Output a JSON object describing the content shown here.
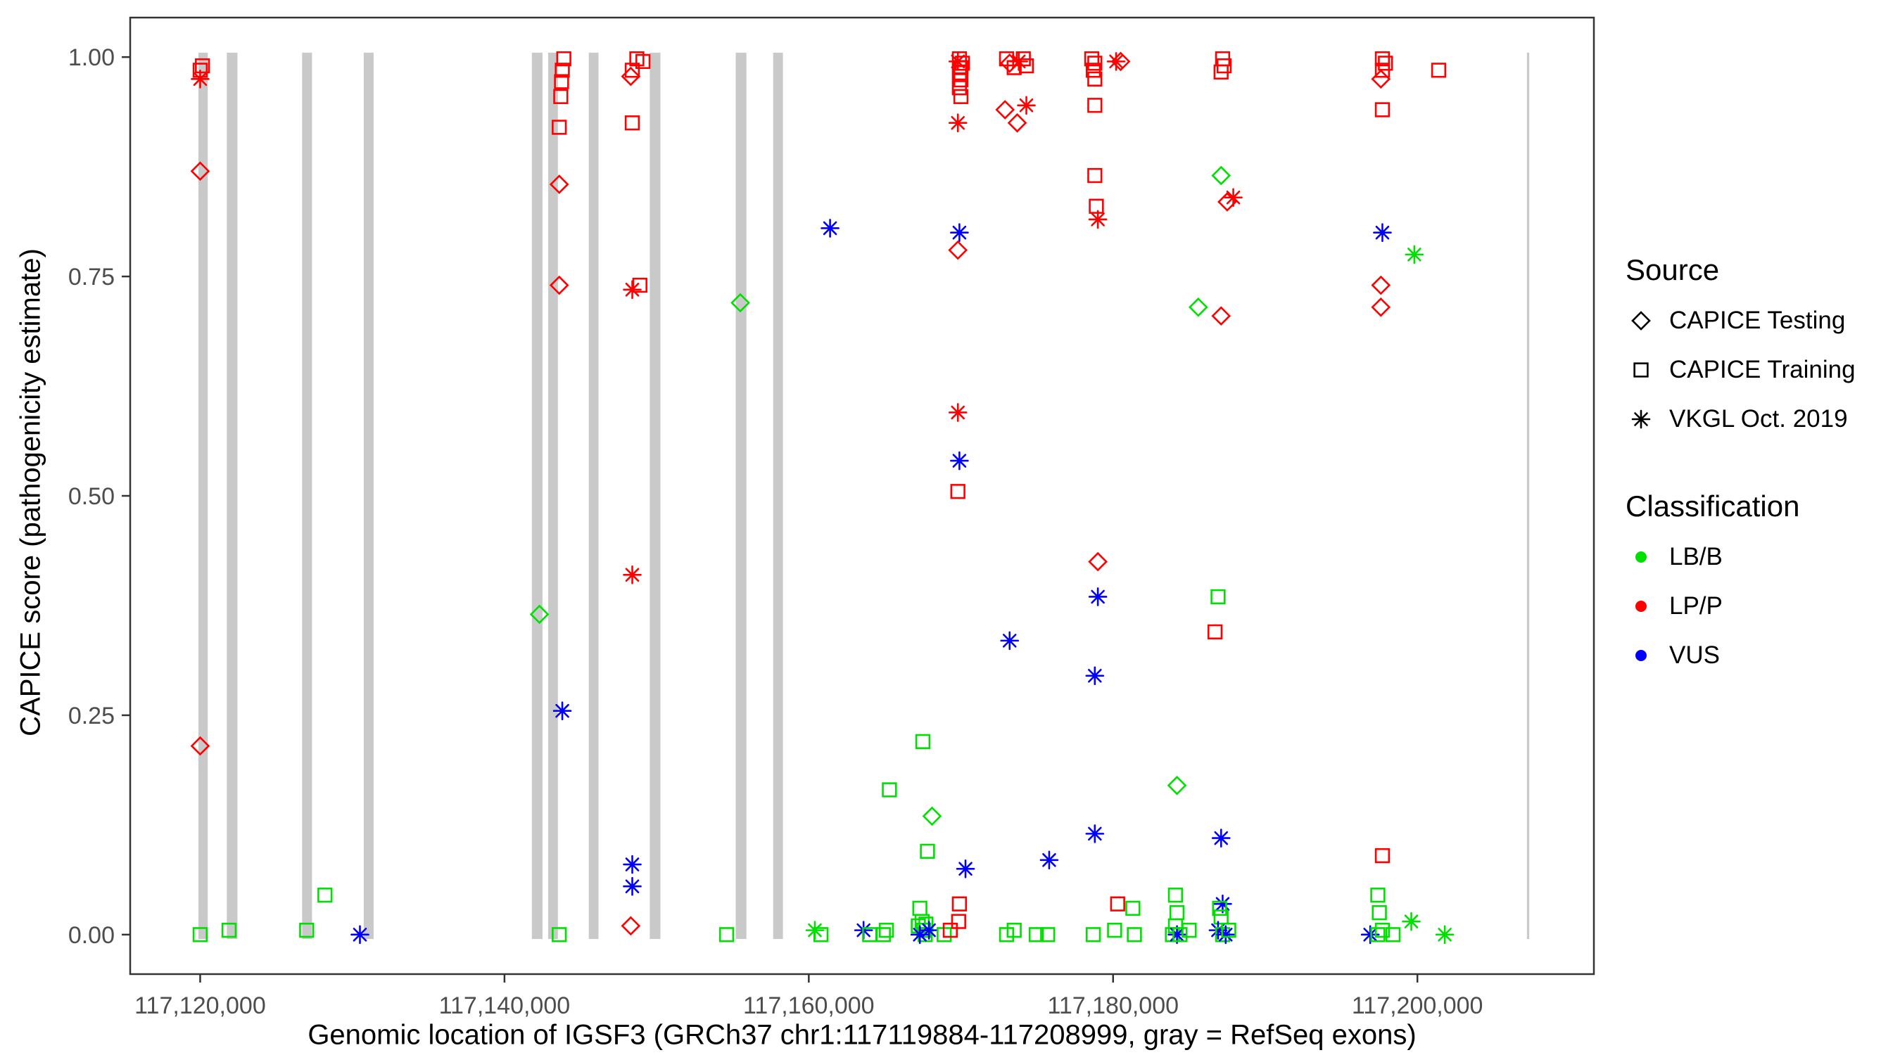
{
  "chart_data": {
    "type": "scatter",
    "title": "",
    "xlabel": "Genomic location of IGSF3 (GRCh37 chr1:117119884-117208999, gray = RefSeq exons)",
    "ylabel": "CAPICE score (pathogenicity estimate)",
    "xlim": [
      117115400,
      117211600
    ],
    "ylim": [
      -0.045,
      1.045
    ],
    "grid": false,
    "panel": {
      "background": "#ffffff",
      "border_color": "#333333"
    },
    "tick_label_color": "#4d4d4d",
    "x_ticks": [
      {
        "value": 117120000,
        "label": "117,120,000"
      },
      {
        "value": 117140000,
        "label": "117,140,000"
      },
      {
        "value": 117160000,
        "label": "117,160,000"
      },
      {
        "value": 117180000,
        "label": "117,180,000"
      },
      {
        "value": 117200000,
        "label": "117,200,000"
      }
    ],
    "y_ticks": [
      {
        "value": 0.0,
        "label": "0.00"
      },
      {
        "value": 0.25,
        "label": "0.25"
      },
      {
        "value": 0.5,
        "label": "0.50"
      },
      {
        "value": 0.75,
        "label": "0.75"
      },
      {
        "value": 1.0,
        "label": "1.00"
      }
    ],
    "exon_color": "#c9c9c9",
    "exons": [
      [
        117119884,
        117120500
      ],
      [
        117121750,
        117122450
      ],
      [
        117126700,
        117127350
      ],
      [
        117130750,
        117131400
      ],
      [
        117141800,
        117142500
      ],
      [
        117142870,
        117143510
      ],
      [
        117145540,
        117146180
      ],
      [
        117149550,
        117150250
      ],
      [
        117155200,
        117155900
      ],
      [
        117157660,
        117158300
      ],
      [
        117207200,
        117207350
      ]
    ],
    "legend": {
      "source": {
        "title": "Source",
        "items": [
          {
            "label": "CAPICE Testing",
            "shape": "diamond"
          },
          {
            "label": "CAPICE Training",
            "shape": "square"
          },
          {
            "label": "VKGL Oct. 2019",
            "shape": "asterisk"
          }
        ]
      },
      "classification": {
        "title": "Classification",
        "items": [
          {
            "label": "LB/B",
            "color": "#00e000"
          },
          {
            "label": "LP/P",
            "color": "#ff0000"
          },
          {
            "label": "VUS",
            "color": "#0000ff"
          }
        ]
      }
    },
    "shape_by_source": {
      "Testing": "diamond",
      "Training": "square",
      "VKGL": "asterisk"
    },
    "color_by_class": {
      "LB/B": "#00e000",
      "LP/P": "#ff0000",
      "VUS": "#0000ff"
    },
    "points_format": [
      "genomic_position",
      "capice_score",
      "source",
      "classification"
    ],
    "points": [
      [
        117120000,
        0.985,
        "Training",
        "LP/P"
      ],
      [
        117120150,
        0.99,
        "Training",
        "LP/P"
      ],
      [
        117120000,
        0.975,
        "VKGL",
        "LP/P"
      ],
      [
        117120000,
        0.87,
        "Testing",
        "LP/P"
      ],
      [
        117120000,
        0.215,
        "Testing",
        "LP/P"
      ],
      [
        117120000,
        0.0,
        "Training",
        "LB/B"
      ],
      [
        117121900,
        0.005,
        "Training",
        "LB/B"
      ],
      [
        117127000,
        0.005,
        "Training",
        "LB/B"
      ],
      [
        117128200,
        0.045,
        "Training",
        "LB/B"
      ],
      [
        117130500,
        0.0,
        "VKGL",
        "VUS"
      ],
      [
        117143900,
        0.998,
        "Training",
        "LP/P"
      ],
      [
        117143800,
        0.985,
        "Training",
        "LP/P"
      ],
      [
        117143750,
        0.972,
        "Training",
        "LP/P"
      ],
      [
        117143700,
        0.955,
        "Training",
        "LP/P"
      ],
      [
        117143600,
        0.92,
        "Training",
        "LP/P"
      ],
      [
        117143600,
        0.855,
        "Testing",
        "LP/P"
      ],
      [
        117143600,
        0.74,
        "Testing",
        "LP/P"
      ],
      [
        117142300,
        0.365,
        "Testing",
        "LB/B"
      ],
      [
        117143800,
        0.255,
        "VKGL",
        "VUS"
      ],
      [
        117143600,
        0.0,
        "Training",
        "LB/B"
      ],
      [
        117148700,
        0.998,
        "Training",
        "LP/P"
      ],
      [
        117149100,
        0.995,
        "Training",
        "LP/P"
      ],
      [
        117148400,
        0.985,
        "Training",
        "LP/P"
      ],
      [
        117148300,
        0.978,
        "Testing",
        "LP/P"
      ],
      [
        117148400,
        0.925,
        "Training",
        "LP/P"
      ],
      [
        117148900,
        0.74,
        "Training",
        "LP/P"
      ],
      [
        117148400,
        0.735,
        "VKGL",
        "LP/P"
      ],
      [
        117148400,
        0.41,
        "VKGL",
        "LP/P"
      ],
      [
        117148400,
        0.08,
        "VKGL",
        "VUS"
      ],
      [
        117148400,
        0.055,
        "VKGL",
        "VUS"
      ],
      [
        117148300,
        0.01,
        "Testing",
        "LP/P"
      ],
      [
        117155500,
        0.72,
        "Testing",
        "LB/B"
      ],
      [
        117154600,
        0.0,
        "Training",
        "LB/B"
      ],
      [
        117161400,
        0.805,
        "VKGL",
        "VUS"
      ],
      [
        117160400,
        0.005,
        "VKGL",
        "LB/B"
      ],
      [
        117160800,
        0.0,
        "Training",
        "LB/B"
      ],
      [
        117163600,
        0.005,
        "VKGL",
        "VUS"
      ],
      [
        117164000,
        0.0,
        "Training",
        "LB/B"
      ],
      [
        117164900,
        0.0,
        "Training",
        "LB/B"
      ],
      [
        117165100,
        0.005,
        "Training",
        "LB/B"
      ],
      [
        117165300,
        0.165,
        "Training",
        "LB/B"
      ],
      [
        117167500,
        0.22,
        "Training",
        "LB/B"
      ],
      [
        117168100,
        0.135,
        "Testing",
        "LB/B"
      ],
      [
        117167800,
        0.095,
        "Training",
        "LB/B"
      ],
      [
        117167300,
        0.03,
        "Training",
        "LB/B"
      ],
      [
        117167450,
        0.015,
        "Training",
        "LB/B"
      ],
      [
        117167200,
        0.01,
        "Training",
        "LB/B"
      ],
      [
        117167550,
        0.005,
        "Training",
        "LB/B"
      ],
      [
        117167650,
        0.0,
        "Training",
        "LB/B"
      ],
      [
        117167700,
        0.012,
        "Training",
        "LB/B"
      ],
      [
        117167300,
        0.0,
        "VKGL",
        "VUS"
      ],
      [
        117167900,
        0.005,
        "VKGL",
        "VUS"
      ],
      [
        117168900,
        0.0,
        "Training",
        "LB/B"
      ],
      [
        117169300,
        0.005,
        "Training",
        "LP/P"
      ],
      [
        117169900,
        0.998,
        "Training",
        "LP/P"
      ],
      [
        117170100,
        0.993,
        "Training",
        "LP/P"
      ],
      [
        117169800,
        0.995,
        "VKGL",
        "LP/P"
      ],
      [
        117170000,
        0.988,
        "Training",
        "LP/P"
      ],
      [
        117169900,
        0.982,
        "Training",
        "LP/P"
      ],
      [
        117170000,
        0.974,
        "Training",
        "LP/P"
      ],
      [
        117169900,
        0.965,
        "Training",
        "LP/P"
      ],
      [
        117170000,
        0.955,
        "Training",
        "LP/P"
      ],
      [
        117169800,
        0.925,
        "VKGL",
        "LP/P"
      ],
      [
        117169900,
        0.8,
        "VKGL",
        "VUS"
      ],
      [
        117169800,
        0.78,
        "Testing",
        "LP/P"
      ],
      [
        117169800,
        0.595,
        "VKGL",
        "LP/P"
      ],
      [
        117169900,
        0.54,
        "VKGL",
        "VUS"
      ],
      [
        117169800,
        0.505,
        "Training",
        "LP/P"
      ],
      [
        117170300,
        0.075,
        "VKGL",
        "VUS"
      ],
      [
        117169900,
        0.035,
        "Training",
        "LP/P"
      ],
      [
        117169850,
        0.015,
        "Training",
        "LP/P"
      ],
      [
        117173000,
        0.998,
        "Training",
        "LP/P"
      ],
      [
        117173200,
        0.993,
        "Testing",
        "LP/P"
      ],
      [
        117173500,
        0.988,
        "Training",
        "LP/P"
      ],
      [
        117173800,
        0.995,
        "VKGL",
        "LP/P"
      ],
      [
        117174100,
        0.998,
        "Training",
        "LP/P"
      ],
      [
        117174300,
        0.99,
        "Training",
        "LP/P"
      ],
      [
        117172900,
        0.94,
        "Testing",
        "LP/P"
      ],
      [
        117173700,
        0.925,
        "Testing",
        "LP/P"
      ],
      [
        117174300,
        0.945,
        "VKGL",
        "LP/P"
      ],
      [
        117173200,
        0.335,
        "VKGL",
        "VUS"
      ],
      [
        117173000,
        0.0,
        "Training",
        "LB/B"
      ],
      [
        117173500,
        0.005,
        "Training",
        "LB/B"
      ],
      [
        117174950,
        0.0,
        "Training",
        "LB/B"
      ],
      [
        117175800,
        0.085,
        "VKGL",
        "VUS"
      ],
      [
        117175700,
        0.0,
        "Training",
        "LB/B"
      ],
      [
        117178600,
        0.998,
        "Training",
        "LP/P"
      ],
      [
        117178800,
        0.993,
        "Training",
        "LP/P"
      ],
      [
        117178700,
        0.985,
        "Training",
        "LP/P"
      ],
      [
        117178800,
        0.975,
        "Training",
        "LP/P"
      ],
      [
        117178800,
        0.945,
        "Training",
        "LP/P"
      ],
      [
        117178800,
        0.865,
        "Training",
        "LP/P"
      ],
      [
        117178900,
        0.83,
        "Training",
        "LP/P"
      ],
      [
        117179000,
        0.815,
        "VKGL",
        "LP/P"
      ],
      [
        117179000,
        0.425,
        "Testing",
        "LP/P"
      ],
      [
        117179000,
        0.385,
        "VKGL",
        "VUS"
      ],
      [
        117178800,
        0.295,
        "VKGL",
        "VUS"
      ],
      [
        117178800,
        0.115,
        "VKGL",
        "VUS"
      ],
      [
        117180200,
        0.995,
        "VKGL",
        "LP/P"
      ],
      [
        117180500,
        0.995,
        "Testing",
        "LP/P"
      ],
      [
        117180300,
        0.035,
        "Training",
        "LP/P"
      ],
      [
        117178700,
        0.0,
        "Training",
        "LB/B"
      ],
      [
        117180100,
        0.005,
        "Training",
        "LB/B"
      ],
      [
        117181300,
        0.03,
        "Training",
        "LB/B"
      ],
      [
        117181400,
        0.0,
        "Training",
        "LB/B"
      ],
      [
        117184200,
        0.17,
        "Testing",
        "LB/B"
      ],
      [
        117185600,
        0.715,
        "Testing",
        "LB/B"
      ],
      [
        117184100,
        0.045,
        "Training",
        "LB/B"
      ],
      [
        117184200,
        0.025,
        "Training",
        "LB/B"
      ],
      [
        117184100,
        0.01,
        "Training",
        "LB/B"
      ],
      [
        117183900,
        0.0,
        "Training",
        "LB/B"
      ],
      [
        117184200,
        0.0,
        "VKGL",
        "VUS"
      ],
      [
        117184400,
        0.0,
        "Training",
        "LB/B"
      ],
      [
        117185000,
        0.005,
        "Training",
        "LB/B"
      ],
      [
        117187200,
        0.998,
        "Training",
        "LP/P"
      ],
      [
        117187300,
        0.99,
        "Training",
        "LP/P"
      ],
      [
        117187100,
        0.983,
        "Training",
        "LP/P"
      ],
      [
        117187100,
        0.865,
        "Testing",
        "LB/B"
      ],
      [
        117187900,
        0.84,
        "VKGL",
        "LP/P"
      ],
      [
        117187500,
        0.835,
        "Testing",
        "LP/P"
      ],
      [
        117187100,
        0.705,
        "Testing",
        "LP/P"
      ],
      [
        117186900,
        0.385,
        "Training",
        "LB/B"
      ],
      [
        117186700,
        0.345,
        "Training",
        "LP/P"
      ],
      [
        117187100,
        0.11,
        "VKGL",
        "VUS"
      ],
      [
        117187200,
        0.035,
        "VKGL",
        "VUS"
      ],
      [
        117187000,
        0.03,
        "Training",
        "LB/B"
      ],
      [
        117187100,
        0.02,
        "Training",
        "LB/B"
      ],
      [
        117186900,
        0.005,
        "VKGL",
        "VUS"
      ],
      [
        117187200,
        0.0,
        "Training",
        "LB/B"
      ],
      [
        117187400,
        0.0,
        "VKGL",
        "VUS"
      ],
      [
        117187600,
        0.005,
        "Training",
        "LB/B"
      ],
      [
        117197700,
        0.998,
        "Training",
        "LP/P"
      ],
      [
        117197900,
        0.993,
        "Training",
        "LP/P"
      ],
      [
        117197700,
        0.985,
        "Training",
        "LP/P"
      ],
      [
        117197600,
        0.975,
        "Testing",
        "LP/P"
      ],
      [
        117197700,
        0.94,
        "Training",
        "LP/P"
      ],
      [
        117197700,
        0.8,
        "VKGL",
        "VUS"
      ],
      [
        117199800,
        0.775,
        "VKGL",
        "LB/B"
      ],
      [
        117197600,
        0.74,
        "Testing",
        "LP/P"
      ],
      [
        117197600,
        0.715,
        "Testing",
        "LP/P"
      ],
      [
        117197700,
        0.09,
        "Training",
        "LP/P"
      ],
      [
        117197400,
        0.045,
        "Training",
        "LB/B"
      ],
      [
        117197500,
        0.025,
        "Training",
        "LB/B"
      ],
      [
        117196900,
        0.0,
        "VKGL",
        "VUS"
      ],
      [
        117197400,
        0.0,
        "Training",
        "LB/B"
      ],
      [
        117197700,
        0.005,
        "Training",
        "LB/B"
      ],
      [
        117198400,
        0.0,
        "Training",
        "LB/B"
      ],
      [
        117199600,
        0.015,
        "VKGL",
        "LB/B"
      ],
      [
        117201400,
        0.985,
        "Training",
        "LP/P"
      ],
      [
        117201800,
        0.0,
        "VKGL",
        "LB/B"
      ]
    ]
  }
}
